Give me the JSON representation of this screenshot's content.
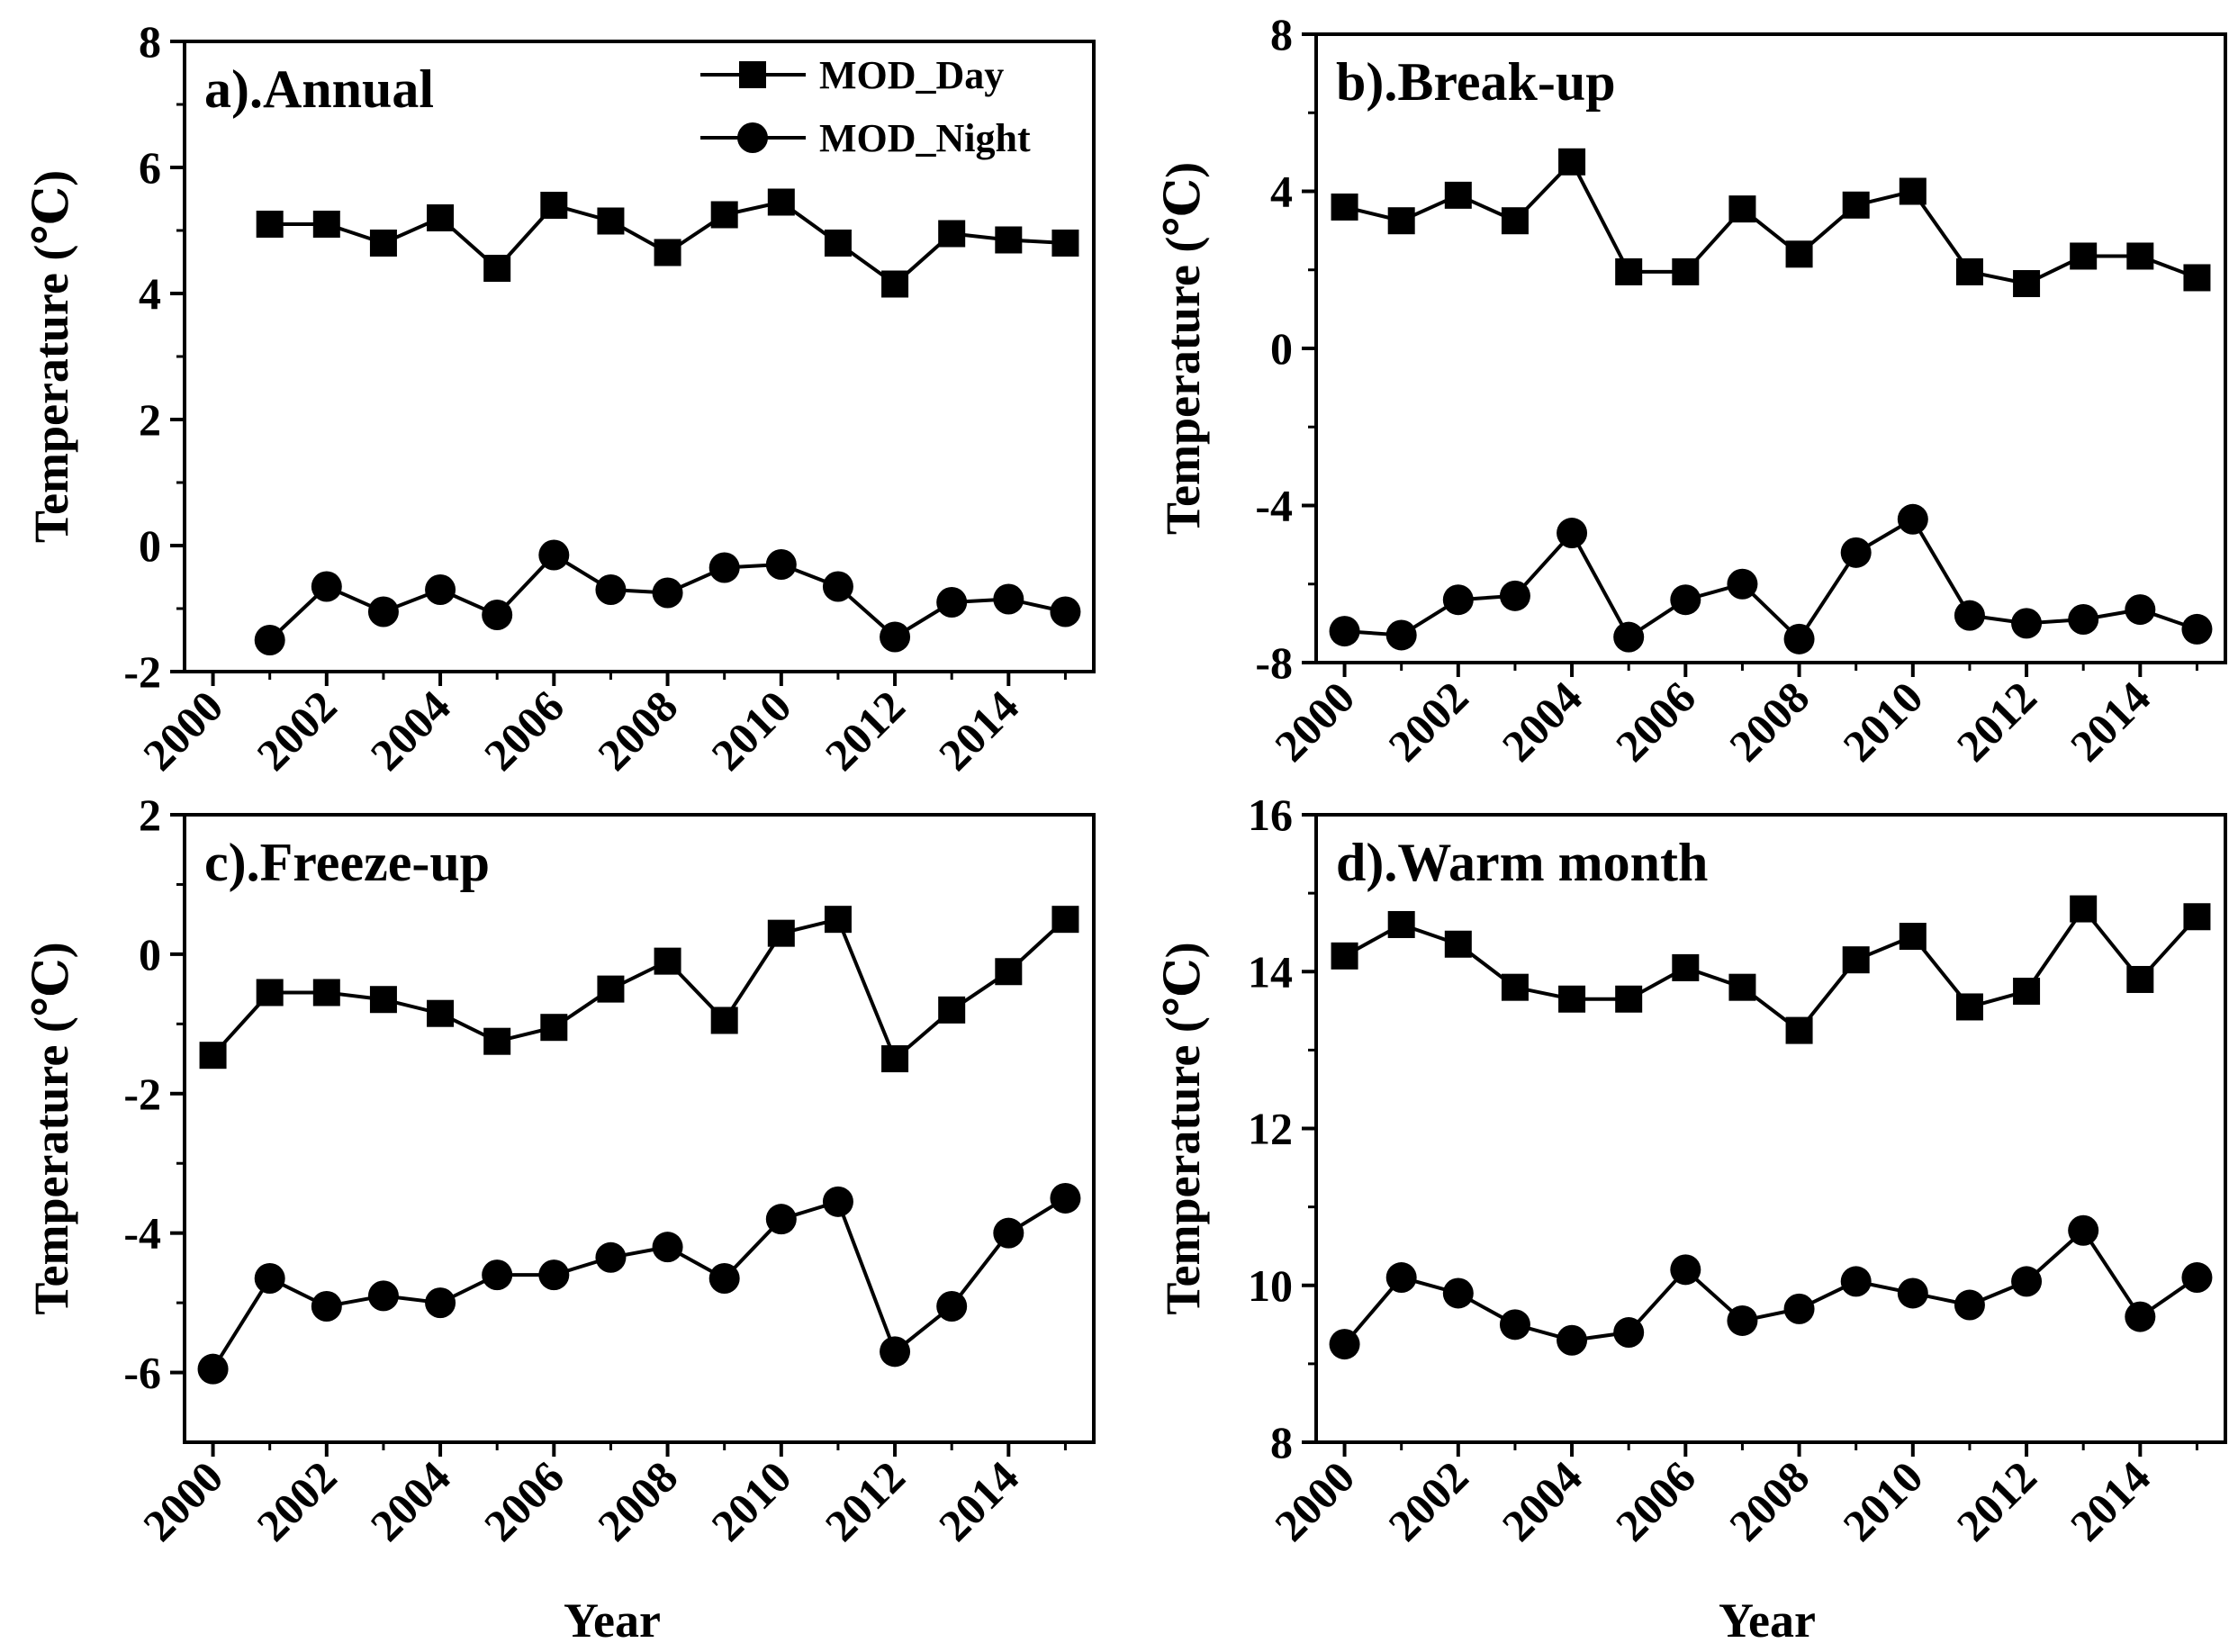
{
  "figure": {
    "x_axis_title": "Year",
    "series_names": [
      "MOD_Day",
      "MOD_Night"
    ],
    "colors": {
      "line": "#000000",
      "marker": "#000000",
      "background": "#ffffff"
    }
  },
  "chart_data": [
    {
      "type": "line",
      "title": "a).Annual",
      "xlabel": "",
      "ylabel": "Temperature (℃)",
      "xlim": [
        1999.5,
        2015.5
      ],
      "ylim": [
        -2,
        8
      ],
      "yticks": [
        -2,
        0,
        2,
        4,
        6,
        8
      ],
      "xticks": [
        2000,
        2002,
        2004,
        2006,
        2008,
        2010,
        2012,
        2014
      ],
      "legend": "top-right",
      "x": [
        2001,
        2002,
        2003,
        2004,
        2005,
        2006,
        2007,
        2008,
        2009,
        2010,
        2011,
        2012,
        2013,
        2014,
        2015
      ],
      "series": [
        {
          "name": "MOD_Day",
          "marker": "square",
          "values": [
            5.1,
            5.1,
            4.8,
            5.2,
            4.4,
            5.4,
            5.15,
            4.65,
            5.25,
            5.45,
            4.8,
            4.15,
            4.95,
            4.85,
            4.8
          ]
        },
        {
          "name": "MOD_Night",
          "marker": "circle",
          "values": [
            -1.5,
            -0.65,
            -1.05,
            -0.7,
            -1.1,
            -0.15,
            -0.7,
            -0.75,
            -0.35,
            -0.3,
            -0.65,
            -1.45,
            -0.9,
            -0.85,
            -1.05
          ]
        }
      ]
    },
    {
      "type": "line",
      "title": "b).Break-up",
      "xlabel": "",
      "ylabel": "Temperature (℃)",
      "xlim": [
        1999.5,
        2015.5
      ],
      "ylim": [
        -8,
        8
      ],
      "yticks": [
        -8,
        -4,
        0,
        4,
        8
      ],
      "xticks": [
        2000,
        2002,
        2004,
        2006,
        2008,
        2010,
        2012,
        2014
      ],
      "x": [
        2000,
        2001,
        2002,
        2003,
        2004,
        2005,
        2006,
        2007,
        2008,
        2009,
        2010,
        2011,
        2012,
        2013,
        2014,
        2015
      ],
      "series": [
        {
          "name": "MOD_Day",
          "marker": "square",
          "values": [
            3.6,
            3.25,
            3.9,
            3.25,
            4.75,
            1.95,
            1.95,
            3.55,
            2.4,
            3.65,
            4.0,
            1.95,
            1.65,
            2.35,
            2.35,
            1.8
          ]
        },
        {
          "name": "MOD_Night",
          "marker": "circle",
          "values": [
            -7.2,
            -7.3,
            -6.4,
            -6.3,
            -4.7,
            -7.35,
            -6.4,
            -6.0,
            -7.4,
            -5.2,
            -4.35,
            -6.8,
            -7.0,
            -6.9,
            -6.65,
            -7.15
          ]
        }
      ]
    },
    {
      "type": "line",
      "title": "c).Freeze-up",
      "xlabel": "Year",
      "ylabel": "Temperature (℃)",
      "xlim": [
        1999.5,
        2015.5
      ],
      "ylim": [
        -7,
        2
      ],
      "yticks": [
        -6,
        -4,
        -2,
        0,
        2
      ],
      "xticks": [
        2000,
        2002,
        2004,
        2006,
        2008,
        2010,
        2012,
        2014
      ],
      "x": [
        2000,
        2001,
        2002,
        2003,
        2004,
        2005,
        2006,
        2007,
        2008,
        2009,
        2010,
        2011,
        2012,
        2013,
        2014,
        2015
      ],
      "series": [
        {
          "name": "MOD_Day",
          "marker": "square",
          "values": [
            -1.45,
            -0.55,
            -0.55,
            -0.65,
            -0.85,
            -1.25,
            -1.05,
            -0.5,
            -0.1,
            -0.95,
            0.3,
            0.5,
            -1.5,
            -0.8,
            -0.25,
            0.5
          ]
        },
        {
          "name": "MOD_Night",
          "marker": "circle",
          "values": [
            -5.95,
            -4.65,
            -5.05,
            -4.9,
            -5.0,
            -4.6,
            -4.6,
            -4.35,
            -4.2,
            -4.65,
            -3.8,
            -3.55,
            -5.7,
            -5.05,
            -4.0,
            -3.5
          ]
        }
      ]
    },
    {
      "type": "line",
      "title": "d).Warm month",
      "xlabel": "Year",
      "ylabel": "Temperature (℃)",
      "xlim": [
        1999.5,
        2015.5
      ],
      "ylim": [
        8,
        16
      ],
      "yticks": [
        8,
        10,
        12,
        14,
        16
      ],
      "xticks": [
        2000,
        2002,
        2004,
        2006,
        2008,
        2010,
        2012,
        2014
      ],
      "x": [
        2000,
        2001,
        2002,
        2003,
        2004,
        2005,
        2006,
        2007,
        2008,
        2009,
        2010,
        2011,
        2012,
        2013,
        2014,
        2015
      ],
      "series": [
        {
          "name": "MOD_Day",
          "marker": "square",
          "values": [
            14.2,
            14.6,
            14.35,
            13.8,
            13.65,
            13.65,
            14.05,
            13.8,
            13.25,
            14.15,
            14.45,
            13.55,
            13.75,
            14.8,
            13.9,
            14.7
          ]
        },
        {
          "name": "MOD_Night",
          "marker": "circle",
          "values": [
            9.25,
            10.1,
            9.9,
            9.5,
            9.3,
            9.4,
            10.2,
            9.55,
            9.7,
            10.05,
            9.9,
            9.75,
            10.05,
            10.7,
            9.6,
            10.1
          ]
        }
      ]
    }
  ]
}
